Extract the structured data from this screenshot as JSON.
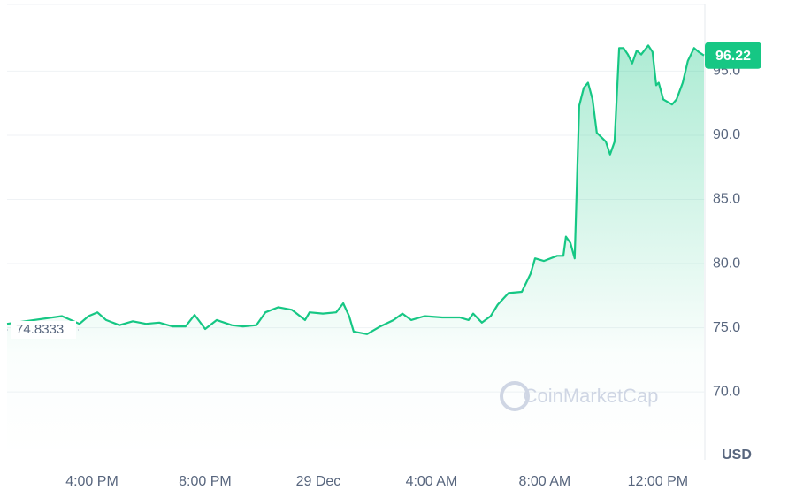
{
  "chart_data": {
    "type": "line",
    "series": [
      {
        "name": "Price",
        "color": "#16c784",
        "x": [
          13.0,
          14.94,
          15.56,
          15.88,
          16.19,
          16.5,
          16.97,
          17.44,
          17.91,
          18.38,
          18.84,
          19.31,
          19.63,
          20,
          20.41,
          20.94,
          21.34,
          21.81,
          22.13,
          22.59,
          23.06,
          23.53,
          23.69,
          24.16,
          24.63,
          24.88,
          25.09,
          25.25,
          25.72,
          26.19,
          26.66,
          26.97,
          27.28,
          27.75,
          28.38,
          29,
          29.31,
          29.47,
          29.78,
          30.09,
          30.34,
          30.72,
          31.19,
          31.5,
          31.66,
          31.97,
          32.44,
          32.66,
          32.75,
          32.91,
          33.06,
          33.22,
          33.38,
          33.53,
          33.69,
          33.84,
          34.16,
          34.31,
          34.47,
          34.63,
          34.78,
          34.94,
          35.09,
          35.25,
          35.41,
          35.66,
          35.81,
          35.94,
          36.03,
          36.19,
          36.5,
          36.66,
          36.88,
          37.06,
          37.28,
          37.44,
          37.63
        ],
        "values": [
          75.3,
          75.9,
          75.3,
          75.9,
          76.2,
          75.6,
          75.2,
          75.5,
          75.3,
          75.4,
          75.1,
          75.1,
          76.0,
          74.9,
          75.6,
          75.2,
          75.1,
          75.2,
          76.2,
          76.6,
          76.4,
          75.6,
          76.2,
          76.1,
          76.2,
          76.9,
          75.9,
          74.7,
          74.5,
          75.1,
          75.6,
          76.1,
          75.6,
          75.9,
          75.8,
          75.8,
          75.6,
          76.1,
          75.4,
          75.9,
          76.8,
          77.7,
          77.8,
          79.2,
          80.4,
          80.2,
          80.6,
          80.6,
          82.1,
          81.6,
          80.4,
          92.3,
          93.7,
          94.1,
          92.8,
          90.2,
          89.5,
          88.5,
          89.5,
          96.8,
          96.8,
          96.3,
          95.6,
          96.6,
          96.3,
          97.0,
          96.5,
          93.9,
          94.1,
          92.8,
          92.4,
          92.8,
          94.1,
          95.8,
          96.8,
          96.5,
          96.22
        ]
      }
    ],
    "xlim": [
      13,
      37.66
    ],
    "xticks": [
      {
        "value": 16,
        "label": "4:00 PM"
      },
      {
        "value": 20,
        "label": "8:00 PM"
      },
      {
        "value": 24,
        "label": "29 Dec"
      },
      {
        "value": 28,
        "label": "4:00 AM"
      },
      {
        "value": 32,
        "label": "8:00 AM"
      },
      {
        "value": 36,
        "label": "12:00 PM"
      }
    ],
    "ylim": [
      64.7,
      100.2
    ],
    "yticks": [
      {
        "value": 70,
        "label": "70.0"
      },
      {
        "value": 75,
        "label": "75.0"
      },
      {
        "value": 80,
        "label": "80.0"
      },
      {
        "value": 85,
        "label": "85.0"
      },
      {
        "value": 90,
        "label": "90.0"
      },
      {
        "value": 95,
        "label": "95.0"
      }
    ],
    "grid": true,
    "start_price": {
      "value": 74.8333,
      "label": "74.8333"
    },
    "last_price": 96.22,
    "currency": "USD",
    "watermark": "CoinMarketCap"
  }
}
